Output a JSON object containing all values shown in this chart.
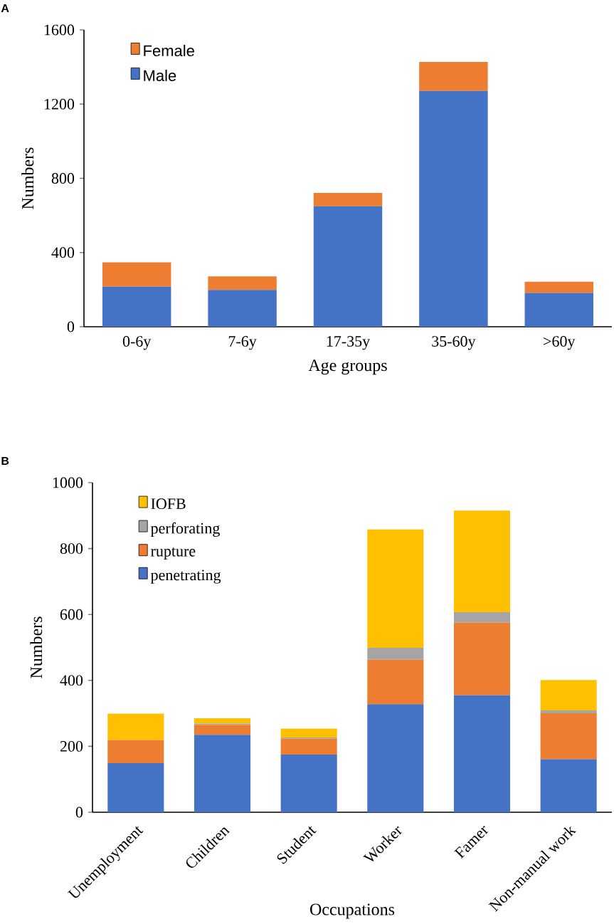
{
  "chart_data": [
    {
      "type": "bar",
      "title": "A",
      "xlabel": "Age groups",
      "ylabel": "Numbers",
      "stacked": true,
      "legend": "top left",
      "grid": false,
      "categories": [
        "0-6y",
        "7-6y",
        "17-35y",
        "35-60y",
        ">60y"
      ],
      "series": [
        {
          "name": "Male",
          "color": "#4472c4",
          "values": [
            216,
            199,
            649,
            1271,
            182
          ]
        },
        {
          "name": "Female",
          "color": "#ed7d31",
          "values": [
            131,
            72,
            72,
            156,
            61
          ]
        }
      ],
      "ylim": [
        0,
        1600
      ],
      "yticks": [
        0,
        400,
        800,
        1200,
        1600
      ]
    },
    {
      "type": "bar",
      "title": "B",
      "xlabel": "Occupations",
      "ylabel": "Numbers",
      "stacked": true,
      "legend": "top left",
      "grid": false,
      "categories": [
        "Unemployment",
        "Children",
        "Student",
        "Worker",
        "Famer",
        "Non-manual work"
      ],
      "series": [
        {
          "name": "penetrating",
          "color": "#4472c4",
          "values": [
            149,
            235,
            175,
            328,
            355,
            161
          ]
        },
        {
          "name": "rupture",
          "color": "#ed7d31",
          "values": [
            70,
            30,
            48,
            135,
            220,
            139
          ]
        },
        {
          "name": "perforating",
          "color": "#a5a5a5",
          "values": [
            0,
            4,
            4,
            36,
            32,
            9
          ]
        },
        {
          "name": "IOFB",
          "color": "#ffc000",
          "values": [
            80,
            16,
            27,
            359,
            308,
            92
          ]
        }
      ],
      "ylim": [
        0,
        1000
      ],
      "yticks": [
        0,
        200,
        400,
        600,
        800,
        1000
      ]
    }
  ]
}
